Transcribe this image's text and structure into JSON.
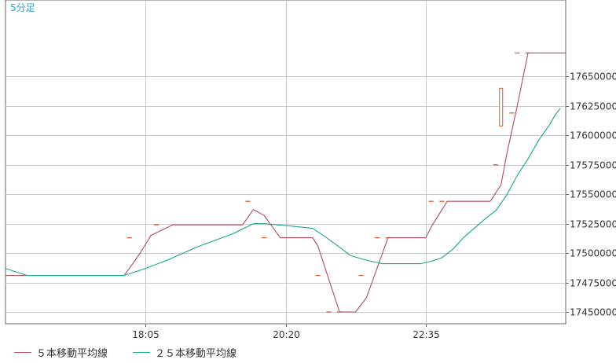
{
  "timeframe_label": "5分足",
  "colors": {
    "ma5": "#b34a5c",
    "ma25": "#17a68a",
    "candle": "#e35b30",
    "grid": "#c9c9c9",
    "axis": "#666666",
    "timeframe": "#2aa7c9"
  },
  "legend": {
    "ma5_label": "５本移動平均線",
    "ma25_label": "２５本移動平均線"
  },
  "chart_data": {
    "type": "line",
    "title": "5分足",
    "xlabel": "",
    "ylabel": "",
    "ylim": [
      17440000,
      17715000
    ],
    "grid": true,
    "legend_position": "bottom-left",
    "y_ticks": [
      17450000,
      17475000,
      17500000,
      17525000,
      17550000,
      17575000,
      17600000,
      17625000,
      17650000
    ],
    "y_tick_labels": [
      "17450000",
      "17475000",
      "17500000",
      "17525000",
      "17550000",
      "17575000",
      "17600000",
      "17625000",
      "17650000"
    ],
    "x_tick_labels": [
      {
        "bar": 26,
        "label": "18:05"
      },
      {
        "bar": 52,
        "label": "20:20"
      },
      {
        "bar": 78,
        "label": "22:35"
      }
    ],
    "bar_count": 104,
    "candles": [
      {
        "bar": 23,
        "open": 17513000,
        "high": 17513000,
        "low": 17513000,
        "close": 17513000
      },
      {
        "bar": 28,
        "open": 17524000,
        "high": 17524000,
        "low": 17524000,
        "close": 17524000
      },
      {
        "bar": 45,
        "open": 17544000,
        "high": 17544000,
        "low": 17544000,
        "close": 17544000
      },
      {
        "bar": 48,
        "open": 17513000,
        "high": 17513000,
        "low": 17513000,
        "close": 17513000
      },
      {
        "bar": 58,
        "open": 17481000,
        "high": 17481000,
        "low": 17481000,
        "close": 17481000
      },
      {
        "bar": 60,
        "open": 17450000,
        "high": 17450000,
        "low": 17450000,
        "close": 17450000
      },
      {
        "bar": 62,
        "open": 17450000,
        "high": 17450000,
        "low": 17450000,
        "close": 17450000
      },
      {
        "bar": 66,
        "open": 17481000,
        "high": 17481000,
        "low": 17481000,
        "close": 17481000
      },
      {
        "bar": 69,
        "open": 17513000,
        "high": 17513000,
        "low": 17513000,
        "close": 17513000
      },
      {
        "bar": 71,
        "open": 17513000,
        "high": 17513000,
        "low": 17513000,
        "close": 17513000
      },
      {
        "bar": 79,
        "open": 17544000,
        "high": 17544000,
        "low": 17544000,
        "close": 17544000
      },
      {
        "bar": 81,
        "open": 17544000,
        "high": 17544000,
        "low": 17544000,
        "close": 17544000
      },
      {
        "bar": 91,
        "open": 17575000,
        "high": 17575000,
        "low": 17575000,
        "close": 17575000
      },
      {
        "bar": 92,
        "open": 17640000,
        "high": 17640000,
        "low": 17608000,
        "close": 17608000
      },
      {
        "bar": 94,
        "open": 17619000,
        "high": 17619000,
        "low": 17619000,
        "close": 17619000
      },
      {
        "bar": 95,
        "open": 17670000,
        "high": 17670000,
        "low": 17670000,
        "close": 17670000
      },
      {
        "bar": 97,
        "open": 17670000,
        "high": 17670000,
        "low": 17670000,
        "close": 17670000
      }
    ],
    "series": [
      {
        "name": "５本移動平均線",
        "points": [
          [
            0,
            17481000
          ],
          [
            4,
            17481000
          ],
          [
            22,
            17481000
          ],
          [
            23,
            17487000
          ],
          [
            25,
            17500000
          ],
          [
            27,
            17515000
          ],
          [
            31,
            17524000
          ],
          [
            44,
            17524000
          ],
          [
            46,
            17537000
          ],
          [
            48,
            17532000
          ],
          [
            51,
            17513000
          ],
          [
            57,
            17513000
          ],
          [
            58,
            17506000
          ],
          [
            62,
            17450000
          ],
          [
            65,
            17450000
          ],
          [
            67,
            17462000
          ],
          [
            70,
            17500000
          ],
          [
            71,
            17513000
          ],
          [
            78,
            17513000
          ],
          [
            79,
            17522000
          ],
          [
            82,
            17544000
          ],
          [
            90,
            17544000
          ],
          [
            92,
            17558000
          ],
          [
            93,
            17583000
          ],
          [
            95,
            17625000
          ],
          [
            97,
            17670000
          ],
          [
            98,
            17670000
          ],
          [
            104,
            17670000
          ]
        ]
      },
      {
        "name": "２５本移動平均線",
        "points": [
          [
            0,
            17487000
          ],
          [
            4,
            17481000
          ],
          [
            22,
            17481000
          ],
          [
            26,
            17487000
          ],
          [
            30,
            17494000
          ],
          [
            36,
            17506000
          ],
          [
            42,
            17516000
          ],
          [
            46,
            17525000
          ],
          [
            48,
            17525000
          ],
          [
            53,
            17523000
          ],
          [
            57,
            17521000
          ],
          [
            59,
            17515000
          ],
          [
            62,
            17505000
          ],
          [
            64,
            17498000
          ],
          [
            67,
            17494000
          ],
          [
            70,
            17491000
          ],
          [
            77,
            17491000
          ],
          [
            79,
            17493000
          ],
          [
            81,
            17496000
          ],
          [
            83,
            17503000
          ],
          [
            85,
            17513000
          ],
          [
            87,
            17521000
          ],
          [
            89,
            17529000
          ],
          [
            91,
            17536000
          ],
          [
            93,
            17549000
          ],
          [
            95,
            17566000
          ],
          [
            97,
            17580000
          ],
          [
            99,
            17596000
          ],
          [
            101,
            17609000
          ],
          [
            102,
            17617000
          ],
          [
            103,
            17623000
          ]
        ]
      }
    ]
  }
}
